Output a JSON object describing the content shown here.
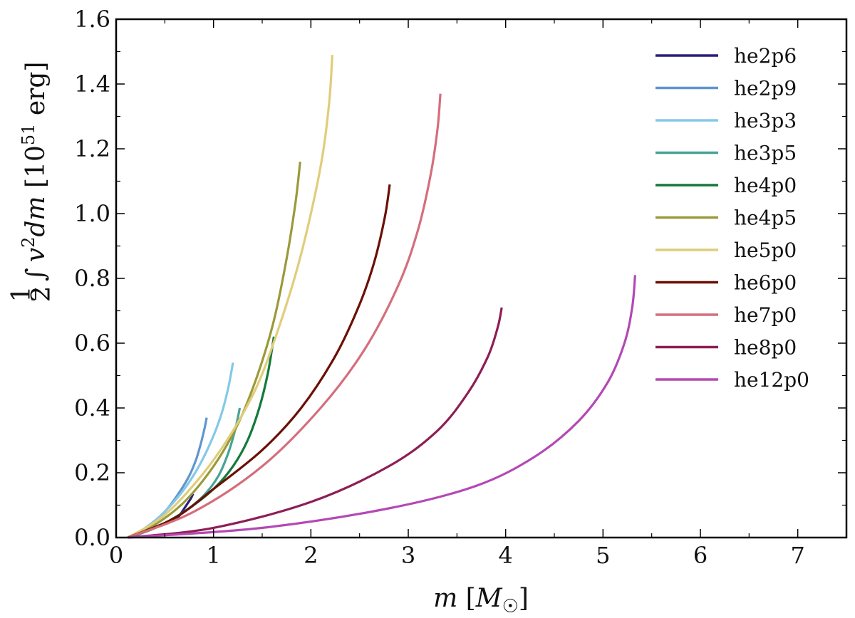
{
  "chart_data": {
    "type": "line",
    "xlim": [
      0,
      7.5
    ],
    "ylim": [
      0,
      1.6
    ],
    "x_ticks": [
      0,
      1,
      2,
      3,
      4,
      5,
      6,
      7
    ],
    "x_tick_labels": [
      "0",
      "1",
      "2",
      "3",
      "4",
      "5",
      "6",
      "7"
    ],
    "y_ticks": [
      0.0,
      0.2,
      0.4,
      0.6,
      0.8,
      1.0,
      1.2,
      1.4,
      1.6
    ],
    "y_tick_labels": [
      "0.0",
      "0.2",
      "0.4",
      "0.6",
      "0.8",
      "1.0",
      "1.2",
      "1.4",
      "1.6"
    ],
    "xlabel": {
      "var": "m",
      "open": " [",
      "unit": "M",
      "sub": "☉",
      "close": "]"
    },
    "ylabel": {
      "frac_num": "1",
      "frac_den": "2",
      "integral": "∫",
      "v": "v",
      "sup": "2",
      "dm": "dm",
      "open": " [10",
      "exp": "51",
      "unit": " erg]"
    },
    "grid": false,
    "legend_position": "top-right",
    "series": [
      {
        "name": "he2p6",
        "color": "#2a1f7a",
        "x": [
          0.62,
          0.66,
          0.7,
          0.74,
          0.77,
          0.79
        ],
        "y": [
          0.055,
          0.072,
          0.09,
          0.108,
          0.122,
          0.135
        ]
      },
      {
        "name": "he2p9",
        "color": "#6096cf",
        "x": [
          0.12,
          0.3,
          0.5,
          0.65,
          0.75,
          0.82,
          0.87,
          0.91,
          0.93
        ],
        "y": [
          0.0,
          0.03,
          0.08,
          0.14,
          0.19,
          0.24,
          0.29,
          0.34,
          0.37
        ]
      },
      {
        "name": "he3p3",
        "color": "#85c8e8",
        "x": [
          0.12,
          0.3,
          0.5,
          0.7,
          0.85,
          0.98,
          1.08,
          1.15,
          1.2
        ],
        "y": [
          0.0,
          0.03,
          0.08,
          0.15,
          0.22,
          0.3,
          0.38,
          0.46,
          0.54
        ]
      },
      {
        "name": "he3p5",
        "color": "#46a395",
        "x": [
          0.12,
          0.4,
          0.7,
          0.9,
          1.05,
          1.15,
          1.22,
          1.27
        ],
        "y": [
          0.0,
          0.03,
          0.08,
          0.13,
          0.19,
          0.26,
          0.33,
          0.4
        ]
      },
      {
        "name": "he4p0",
        "color": "#137a3c",
        "x": [
          0.12,
          0.4,
          0.7,
          1.0,
          1.2,
          1.35,
          1.47,
          1.56,
          1.62
        ],
        "y": [
          0.0,
          0.03,
          0.08,
          0.15,
          0.22,
          0.3,
          0.4,
          0.51,
          0.62
        ]
      },
      {
        "name": "he4p5",
        "color": "#9a9a3a",
        "x": [
          0.12,
          0.4,
          0.7,
          1.0,
          1.25,
          1.45,
          1.62,
          1.75,
          1.84,
          1.89
        ],
        "y": [
          0.0,
          0.04,
          0.11,
          0.22,
          0.35,
          0.5,
          0.67,
          0.86,
          1.03,
          1.16
        ]
      },
      {
        "name": "he5p0",
        "color": "#e0cd7a",
        "x": [
          0.12,
          0.5,
          0.9,
          1.2,
          1.45,
          1.65,
          1.85,
          2.0,
          2.12,
          2.19,
          2.22
        ],
        "y": [
          0.0,
          0.07,
          0.2,
          0.33,
          0.47,
          0.63,
          0.82,
          1.0,
          1.18,
          1.35,
          1.49
        ]
      },
      {
        "name": "he6p0",
        "color": "#6b0f05",
        "x": [
          0.12,
          0.6,
          1.0,
          1.5,
          1.9,
          2.25,
          2.5,
          2.65,
          2.76,
          2.81
        ],
        "y": [
          0.0,
          0.06,
          0.15,
          0.27,
          0.4,
          0.56,
          0.72,
          0.85,
          0.99,
          1.09
        ]
      },
      {
        "name": "he7p0",
        "color": "#d46e7c",
        "x": [
          0.12,
          0.8,
          1.5,
          2.1,
          2.55,
          2.9,
          3.1,
          3.23,
          3.3,
          3.33
        ],
        "y": [
          0.0,
          0.08,
          0.22,
          0.4,
          0.58,
          0.78,
          0.95,
          1.12,
          1.26,
          1.37
        ]
      },
      {
        "name": "he8p0",
        "color": "#8e1e55",
        "x": [
          0.12,
          1.0,
          2.0,
          2.8,
          3.3,
          3.62,
          3.82,
          3.92,
          3.96
        ],
        "y": [
          0.0,
          0.03,
          0.11,
          0.22,
          0.33,
          0.45,
          0.56,
          0.65,
          0.71
        ]
      },
      {
        "name": "he12p0",
        "color": "#b448b4",
        "x": [
          0.12,
          1.5,
          2.8,
          3.7,
          4.3,
          4.75,
          5.05,
          5.22,
          5.3,
          5.33
        ],
        "y": [
          0.0,
          0.03,
          0.09,
          0.16,
          0.25,
          0.36,
          0.48,
          0.6,
          0.71,
          0.81
        ]
      }
    ]
  }
}
